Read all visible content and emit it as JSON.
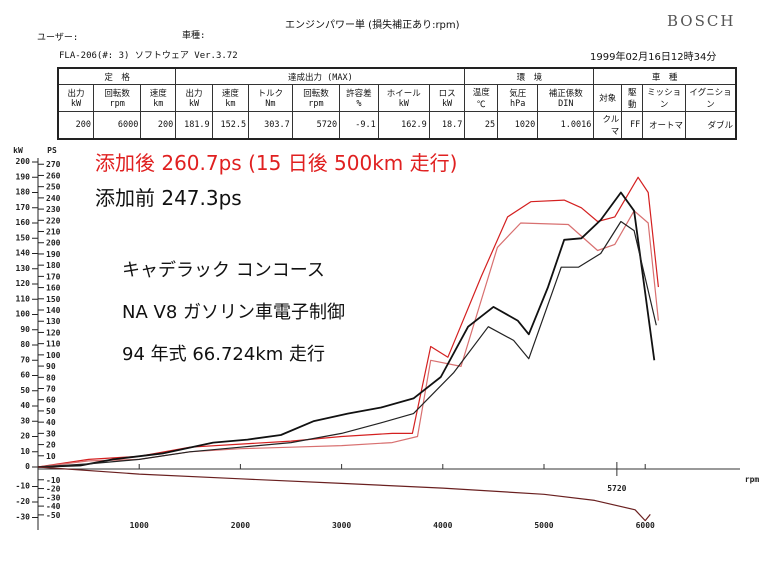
{
  "header": {
    "title": "エンジンパワー単 (損失補正あり:rpm)",
    "brand": "BOSCH",
    "user_label": "ユーザー:",
    "car_label": "車種:",
    "device": "FLA-206(#: 3)  ソフトウェア Ver.3.72",
    "datetime": "1999年02月16日12時34分"
  },
  "table": {
    "groups": [
      "定　格",
      "達成出力 (MAX)",
      "環　境",
      "車　種"
    ],
    "columns": [
      "出力 kW",
      "回転数 rpm",
      "速度 km",
      "出力 kW",
      "速度 km",
      "トルク Nm",
      "回転数 rpm",
      "許容差 %",
      "ホイール kW",
      "ロス kW",
      "温度 ℃",
      "気圧 hPa",
      "補正係数 DIN",
      "対象",
      "駆動",
      "ミッション",
      "イグニション"
    ],
    "values": [
      "200",
      "6000",
      "200",
      "181.9",
      "152.5",
      "303.7",
      "5720",
      "-9.1",
      "162.9",
      "18.7",
      "25",
      "1020",
      "1.0016",
      "クルマ",
      "FF",
      "オートマ",
      "ダブル"
    ]
  },
  "annotations": {
    "after": "添加後 260.7ps (15 日後 500km 走行)",
    "before": "添加前 247.3ps",
    "model": "キャデラック コンコース",
    "engine": "NA V8 ガソリン車電子制御",
    "year": "94 年式 66.724km 走行"
  },
  "colors": {
    "after": "#d42020",
    "after_light": "#d87070",
    "before": "#111111"
  },
  "chart_data": {
    "type": "line",
    "xlabel": "rpm",
    "ylabel_left": "kW",
    "ylabel_right": "PS",
    "xlim": [
      0,
      6300
    ],
    "ylim": [
      -30,
      200
    ],
    "x_ticks": [
      1000,
      2000,
      3000,
      4000,
      5000,
      6000
    ],
    "x_marker": 5720,
    "kw_ticks": [
      200,
      190,
      180,
      170,
      160,
      150,
      140,
      130,
      120,
      110,
      100,
      90,
      80,
      70,
      60,
      50,
      40,
      30,
      20,
      10,
      0,
      -10,
      -20,
      -30
    ],
    "ps_ticks": [
      270,
      260,
      250,
      240,
      230,
      220,
      210,
      200,
      190,
      180,
      170,
      160,
      150,
      140,
      130,
      120,
      110,
      100,
      90,
      80,
      70,
      60,
      50,
      40,
      30,
      20,
      10,
      -10,
      -20,
      -30,
      -40,
      -50
    ],
    "grid": false,
    "series": [
      {
        "color": "#d42020",
        "points": [
          [
            0,
            0
          ],
          [
            500,
            5
          ],
          [
            1000,
            7
          ],
          [
            1500,
            13
          ],
          [
            2000,
            15
          ],
          [
            2500,
            17
          ],
          [
            3000,
            20
          ],
          [
            3500,
            22
          ],
          [
            3700,
            22
          ],
          [
            3880,
            79
          ],
          [
            4050,
            72
          ],
          [
            4380,
            125
          ],
          [
            4640,
            164
          ],
          [
            4870,
            174
          ],
          [
            5200,
            175
          ],
          [
            5370,
            170
          ],
          [
            5530,
            161
          ],
          [
            5700,
            164
          ],
          [
            5930,
            190
          ],
          [
            6030,
            180
          ],
          [
            6130,
            118
          ]
        ]
      },
      {
        "color": "#d87070",
        "points": [
          [
            0,
            0
          ],
          [
            500,
            4
          ],
          [
            1000,
            5
          ],
          [
            1500,
            10
          ],
          [
            2000,
            12
          ],
          [
            2500,
            13
          ],
          [
            3000,
            14
          ],
          [
            3500,
            16
          ],
          [
            3750,
            20
          ],
          [
            3880,
            70
          ],
          [
            4180,
            66
          ],
          [
            4540,
            144
          ],
          [
            4770,
            160
          ],
          [
            5240,
            159
          ],
          [
            5530,
            142
          ],
          [
            5700,
            146
          ],
          [
            5890,
            168
          ],
          [
            6030,
            160
          ],
          [
            6130,
            96
          ]
        ]
      },
      {
        "color": "#111111",
        "points": [
          [
            0,
            0
          ],
          [
            420,
            1
          ],
          [
            740,
            5
          ],
          [
            1240,
            9
          ],
          [
            1730,
            16
          ],
          [
            2070,
            18
          ],
          [
            2400,
            21
          ],
          [
            2720,
            30
          ],
          [
            3060,
            35
          ],
          [
            3390,
            39
          ],
          [
            3710,
            45
          ],
          [
            3980,
            59
          ],
          [
            4250,
            92
          ],
          [
            4500,
            105
          ],
          [
            4740,
            96
          ],
          [
            4850,
            87
          ],
          [
            5040,
            118
          ],
          [
            5200,
            149
          ],
          [
            5370,
            150
          ],
          [
            5560,
            162
          ],
          [
            5760,
            180
          ],
          [
            5890,
            168
          ],
          [
            6090,
            70
          ]
        ]
      },
      {
        "color": "#222222",
        "points": [
          [
            0,
            0
          ],
          [
            500,
            2
          ],
          [
            1000,
            5
          ],
          [
            1500,
            10
          ],
          [
            2000,
            13
          ],
          [
            2500,
            16
          ],
          [
            3000,
            22
          ],
          [
            3390,
            29
          ],
          [
            3710,
            35
          ],
          [
            4110,
            62
          ],
          [
            4450,
            92
          ],
          [
            4700,
            83
          ],
          [
            4850,
            71
          ],
          [
            5170,
            131
          ],
          [
            5340,
            131
          ],
          [
            5560,
            140
          ],
          [
            5760,
            161
          ],
          [
            5890,
            155
          ],
          [
            6110,
            93
          ]
        ]
      },
      {
        "color": "#6a2020",
        "points": [
          [
            0,
            0
          ],
          [
            1000,
            -2
          ],
          [
            2000,
            -5
          ],
          [
            3000,
            -8
          ],
          [
            4000,
            -11
          ],
          [
            5000,
            -15
          ],
          [
            5500,
            -19
          ],
          [
            5900,
            -25
          ],
          [
            6000,
            -32
          ],
          [
            6050,
            -28
          ]
        ]
      }
    ]
  }
}
